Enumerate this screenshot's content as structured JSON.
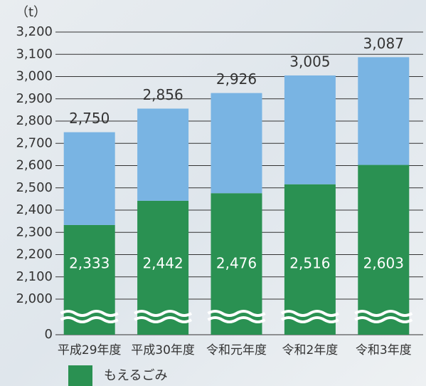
{
  "chart_data": {
    "type": "stacked-bar",
    "y_label": "（t）",
    "categories": [
      "平成29年度",
      "平成30年度",
      "令和元年度",
      "令和2年度",
      "令和3年度"
    ],
    "series": [
      {
        "name": "もえるごみ",
        "color": "#2a9152",
        "values": [
          2333,
          2442,
          2476,
          2516,
          2603
        ],
        "value_labels": [
          "2,333",
          "2,442",
          "2,476",
          "2,516",
          "2,603"
        ]
      },
      {
        "color": "#79b4e3",
        "values": [
          417,
          414,
          450,
          489,
          484
        ]
      }
    ],
    "totals": {
      "values": [
        2750,
        2856,
        2926,
        3005,
        3087
      ],
      "value_labels": [
        "2,750",
        "2,856",
        "2,926",
        "3,005",
        "3,087"
      ]
    },
    "ylim": [
      0,
      3200
    ],
    "axis_break": [
      0,
      2000
    ],
    "yticks": [
      0,
      {
        "value": 2000,
        "label": "2,000"
      },
      {
        "value": 2100,
        "label": "2,100"
      },
      {
        "value": 2200,
        "label": "2,200"
      },
      {
        "value": 2300,
        "label": "2,300"
      },
      {
        "value": 2400,
        "label": "2,400"
      },
      {
        "value": 2500,
        "label": "2,500"
      },
      {
        "value": 2600,
        "label": "2,600"
      },
      {
        "value": 2700,
        "label": "2,700"
      },
      {
        "value": 2800,
        "label": "2,800"
      },
      {
        "value": 2900,
        "label": "2,900"
      },
      {
        "value": 3000,
        "label": "3,000"
      },
      {
        "value": 3100,
        "label": "3,100"
      },
      {
        "value": 3200,
        "label": "3,200"
      }
    ],
    "grid": true
  }
}
